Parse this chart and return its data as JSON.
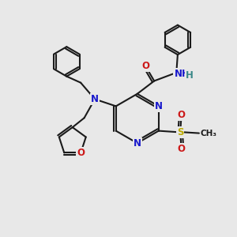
{
  "bg_color": "#e8e8e8",
  "bond_color": "#1a1a1a",
  "bond_width": 1.5,
  "atom_colors": {
    "N": "#1818cc",
    "O": "#cc1818",
    "S": "#bbaa00",
    "H": "#3a8888",
    "C": "#1a1a1a"
  },
  "font_size_atom": 8.5,
  "font_size_small": 7.5
}
